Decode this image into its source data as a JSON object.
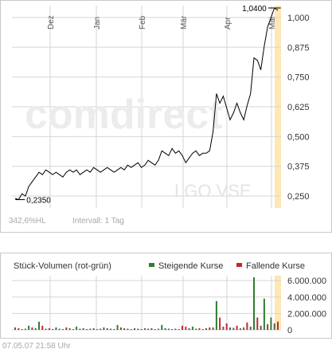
{
  "watermark": {
    "logo": "comdirect",
    "symbol": "LGO.VSE"
  },
  "price_panel": {
    "footer": {
      "range_text": "342,6%HL",
      "interval_text": "Intervall: 1 Tag"
    }
  },
  "volume_panel": {
    "title": "Stück-Volumen (rot-grün)",
    "legend": [
      {
        "label": "Steigende Kurse",
        "color": "#2e7d32"
      },
      {
        "label": "Fallende Kurse",
        "color": "#c62828"
      }
    ]
  },
  "timestamp": "07.05.07   21:58 Uhr",
  "colors": {
    "price_line": "#000000",
    "grid": "#d6d6d6",
    "highlight": "#fce7b5",
    "up": "#2e7d32",
    "down": "#c62828",
    "neutral": "#5a5a5a"
  },
  "chart_data": [
    {
      "type": "line",
      "title": "",
      "xlabel": "",
      "ylabel": "",
      "x_tick_labels": [
        "Dez",
        "Jan",
        "Feb",
        "Mär",
        "Apr",
        "Mai"
      ],
      "y_tick_labels": [
        "0,250",
        "0,375",
        "0,500",
        "0,625",
        "0,750",
        "0,875",
        "1,000"
      ],
      "y_ticks": [
        0.25,
        0.375,
        0.5,
        0.625,
        0.75,
        0.875,
        1.0
      ],
      "ylim": [
        0.2,
        1.05
      ],
      "grid": true,
      "annotations": [
        {
          "text": "0,2350",
          "value": 0.235,
          "position": "low"
        },
        {
          "text": "1,0400",
          "value": 1.04,
          "position": "high"
        }
      ],
      "series": [
        {
          "values": [
            0.24,
            0.235,
            0.26,
            0.25,
            0.29,
            0.31,
            0.33,
            0.35,
            0.34,
            0.36,
            0.35,
            0.34,
            0.35,
            0.34,
            0.33,
            0.35,
            0.36,
            0.35,
            0.36,
            0.34,
            0.35,
            0.36,
            0.35,
            0.37,
            0.36,
            0.35,
            0.36,
            0.37,
            0.36,
            0.35,
            0.36,
            0.37,
            0.36,
            0.38,
            0.37,
            0.38,
            0.39,
            0.37,
            0.38,
            0.4,
            0.39,
            0.38,
            0.4,
            0.44,
            0.43,
            0.42,
            0.45,
            0.43,
            0.44,
            0.42,
            0.39,
            0.41,
            0.43,
            0.44,
            0.42,
            0.43,
            0.43,
            0.44,
            0.52,
            0.68,
            0.64,
            0.67,
            0.62,
            0.57,
            0.6,
            0.64,
            0.6,
            0.57,
            0.63,
            0.68,
            0.83,
            0.82,
            0.78,
            0.88,
            0.96,
            1.0,
            1.04,
            1.03
          ]
        }
      ]
    },
    {
      "type": "bar",
      "title": "Stück-Volumen (rot-grün)",
      "xlabel": "",
      "ylabel": "",
      "y_tick_labels": [
        "0",
        "2.000.000",
        "4.000.000",
        "6.000.000"
      ],
      "y_ticks": [
        0,
        2000000,
        4000000,
        6000000
      ],
      "ylim": [
        0,
        6600000
      ],
      "grid": true,
      "series": [
        {
          "name": "Steigende Kurse",
          "values": [
            300000,
            0,
            0,
            0,
            500000,
            0,
            0,
            1000000,
            0,
            0,
            0,
            0,
            300000,
            0,
            0,
            0,
            0,
            0,
            400000,
            0,
            0,
            0,
            0,
            0,
            0,
            0,
            300000,
            0,
            0,
            0,
            600000,
            0,
            0,
            0,
            0,
            0,
            0,
            0,
            0,
            0,
            0,
            0,
            0,
            600000,
            0,
            0,
            0,
            0,
            0,
            0,
            0,
            0,
            400000,
            0,
            0,
            0,
            0,
            0,
            0,
            3500000,
            0,
            0,
            0,
            0,
            0,
            0,
            0,
            0,
            0,
            0,
            6400000,
            0,
            0,
            3800000,
            0,
            1500000,
            0,
            0
          ]
        },
        {
          "name": "Fallende Kurse",
          "values": [
            0,
            200000,
            0,
            0,
            0,
            300000,
            0,
            0,
            500000,
            0,
            200000,
            0,
            0,
            0,
            0,
            300000,
            0,
            0,
            0,
            0,
            200000,
            0,
            0,
            0,
            0,
            0,
            0,
            200000,
            0,
            0,
            0,
            300000,
            0,
            0,
            0,
            0,
            0,
            0,
            0,
            0,
            200000,
            0,
            0,
            0,
            0,
            0,
            0,
            0,
            0,
            500000,
            400000,
            0,
            0,
            0,
            200000,
            0,
            0,
            300000,
            0,
            0,
            1500000,
            0,
            800000,
            0,
            0,
            500000,
            0,
            0,
            900000,
            0,
            0,
            1500000,
            0,
            0,
            700000,
            0,
            0,
            1000000
          ]
        },
        {
          "name": "",
          "values": [
            150000,
            0,
            100000,
            150000,
            0,
            0,
            200000,
            0,
            0,
            150000,
            0,
            100000,
            0,
            150000,
            100000,
            0,
            200000,
            100000,
            0,
            150000,
            0,
            100000,
            150000,
            200000,
            100000,
            150000,
            0,
            0,
            150000,
            100000,
            0,
            0,
            200000,
            150000,
            100000,
            200000,
            150000,
            100000,
            200000,
            150000,
            0,
            100000,
            150000,
            0,
            200000,
            150000,
            100000,
            150000,
            100000,
            0,
            0,
            200000,
            0,
            150000,
            0,
            100000,
            200000,
            0,
            300000,
            0,
            0,
            400000,
            0,
            300000,
            250000,
            0,
            200000,
            300000,
            0,
            400000,
            0,
            0,
            500000,
            0,
            0,
            0,
            800000,
            0
          ]
        }
      ]
    }
  ]
}
